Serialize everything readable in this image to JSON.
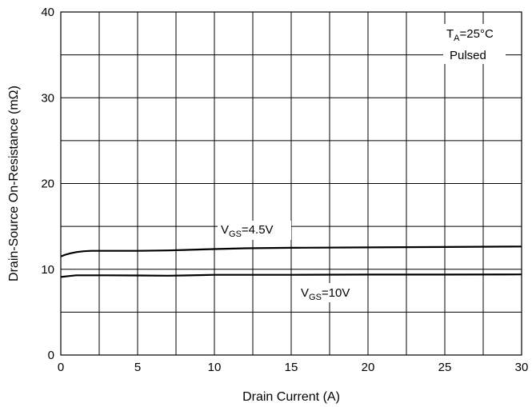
{
  "chart_data": {
    "type": "line",
    "xlabel": "Drain Current (A)",
    "ylabel": "Drain-Source On-Resistance (mΩ)",
    "xlim": [
      0,
      30
    ],
    "ylim": [
      0,
      40
    ],
    "xticks": [
      0,
      5,
      10,
      15,
      20,
      25,
      30
    ],
    "yticks": [
      0,
      10,
      20,
      30,
      40
    ],
    "x_minor_gridlines": [
      2.5,
      7.5,
      12.5,
      17.5,
      22.5,
      27.5
    ],
    "y_minor_gridlines": [
      5,
      15,
      25,
      35
    ],
    "grid": true,
    "annotation": {
      "prefix": "T",
      "subscript": "A",
      "suffix": "=25°C",
      "line2": "Pulsed"
    },
    "series": [
      {
        "name_prefix": "V",
        "name_subscript": "GS",
        "name_suffix": "=4.5V",
        "x": [
          0,
          0.3,
          0.6,
          1.0,
          1.5,
          2.0,
          2.5,
          3,
          5,
          7,
          8,
          10,
          12,
          15,
          20,
          25,
          30
        ],
        "y": [
          11.5,
          11.7,
          11.85,
          12.0,
          12.1,
          12.15,
          12.15,
          12.15,
          12.15,
          12.2,
          12.25,
          12.35,
          12.45,
          12.5,
          12.55,
          12.6,
          12.65
        ]
      },
      {
        "name_prefix": "V",
        "name_subscript": "GS",
        "name_suffix": "=10V",
        "x": [
          0,
          0.5,
          1,
          2,
          3,
          5,
          7,
          8,
          10,
          12,
          15,
          20,
          25,
          30
        ],
        "y": [
          9.1,
          9.2,
          9.3,
          9.3,
          9.3,
          9.28,
          9.25,
          9.28,
          9.35,
          9.35,
          9.35,
          9.38,
          9.38,
          9.4
        ]
      }
    ]
  }
}
